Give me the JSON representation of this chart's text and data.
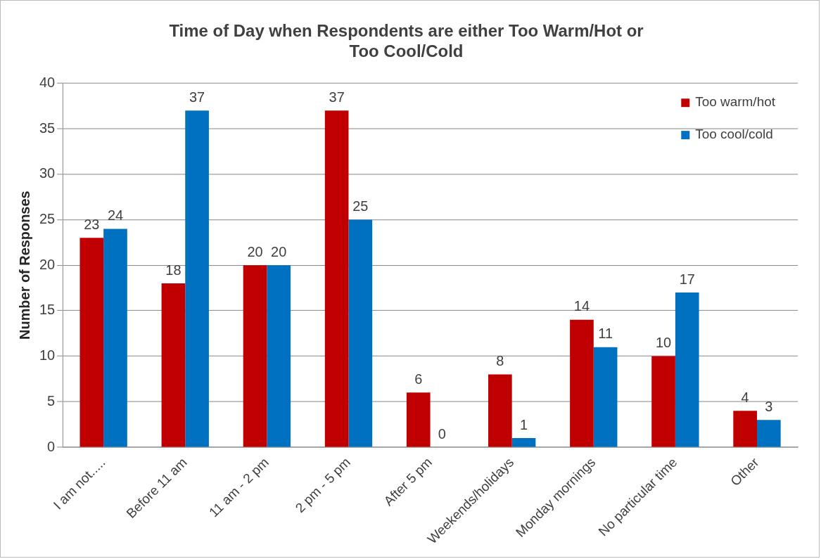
{
  "chart_data": {
    "type": "bar",
    "title": "Time of Day when Respondents are either Too Warm/Hot or Too Cool/Cold",
    "ylabel": "Number of Responses",
    "categories": [
      "I am not.....",
      "Before 11 am",
      "11 am - 2 pm",
      "2 pm - 5 pm",
      "After 5 pm",
      "Weekends/holidays",
      "Monday mornings",
      "No particular time",
      "Other"
    ],
    "series": [
      {
        "name": "Too warm/hot",
        "color": "#c00000",
        "values": [
          23,
          18,
          20,
          37,
          6,
          8,
          14,
          10,
          4
        ]
      },
      {
        "name": "Too cool/cold",
        "color": "#0070c0",
        "values": [
          24,
          37,
          20,
          25,
          0,
          1,
          11,
          17,
          3
        ]
      }
    ],
    "ylim": [
      0,
      40
    ],
    "yticks": [
      0,
      5,
      10,
      15,
      20,
      25,
      30,
      35,
      40
    ],
    "grid": "y",
    "legend": "top right",
    "data_labels": true
  }
}
